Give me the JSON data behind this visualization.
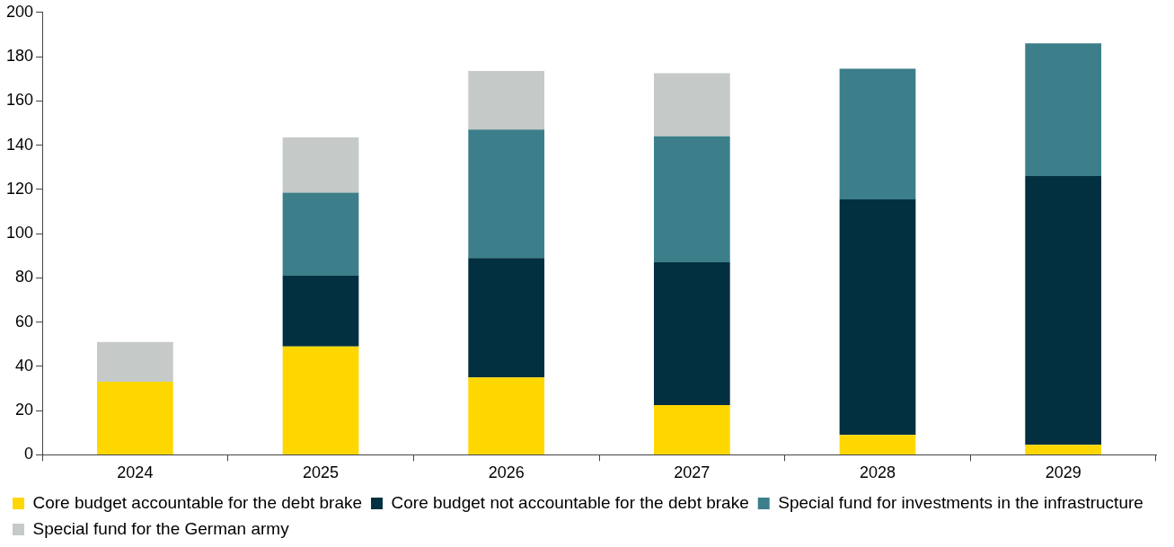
{
  "chart_data": {
    "type": "bar",
    "stacked": true,
    "categories": [
      "2024",
      "2025",
      "2026",
      "2027",
      "2028",
      "2029"
    ],
    "series": [
      {
        "name": "Core budget accountable for the debt brake",
        "color": "#ffd700",
        "values": [
          33,
          49,
          35,
          22.5,
          9,
          4.5
        ]
      },
      {
        "name": "Core budget not accountable for the debt brake",
        "color": "#023040",
        "values": [
          null,
          32,
          54,
          64.5,
          106.5,
          121.5
        ]
      },
      {
        "name": "Special fund for investments in the infrastructure",
        "color": "#3c7f8a",
        "values": [
          null,
          37.5,
          58,
          57,
          59,
          60
        ]
      },
      {
        "name": "Special fund for the German army",
        "color": "#c5c9c8",
        "values": [
          18,
          25,
          26.5,
          28.5,
          null,
          null
        ]
      }
    ],
    "ylim": [
      0,
      200
    ],
    "yticks": [
      0,
      20,
      40,
      60,
      80,
      100,
      120,
      140,
      160,
      180,
      200
    ],
    "grid": false,
    "legend": "bottom"
  }
}
